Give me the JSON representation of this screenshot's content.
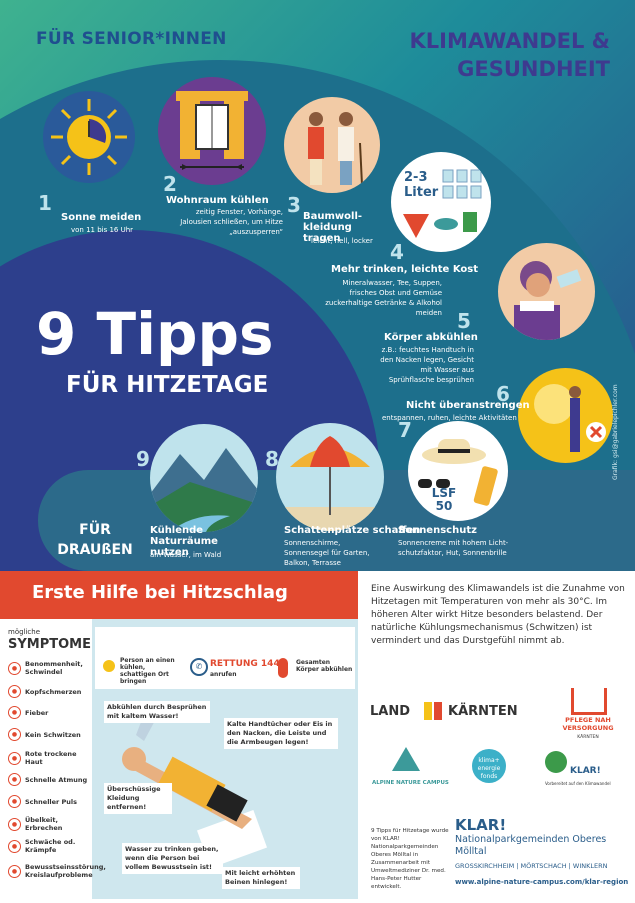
{
  "header": {
    "audience": "FÜR SENIOR*INNEN",
    "title_line1": "KLIMAWANDEL &",
    "title_line2": "GESUNDHEIT"
  },
  "hero": {
    "big": "9 Tipps",
    "sub": "FÜR HITZETAGE",
    "outdoor_line1": "FÜR",
    "outdoor_line2": "DRAUßEN"
  },
  "tips": [
    {
      "num": "1",
      "title": "Sonne meiden",
      "text": "von 11 bis 16 Uhr"
    },
    {
      "num": "2",
      "title": "Wohnraum kühlen",
      "text": "zeitig Fenster, Vorhänge, Jalousien schließen, um Hitze „auszusperren“"
    },
    {
      "num": "3",
      "title": "Baumwoll- kleidung tragen",
      "text": "leicht, hell, locker"
    },
    {
      "num": "4",
      "title": "Mehr trinken, leichte Kost",
      "text": "Mineralwasser, Tee, Suppen, frisches Obst und Gemüse zuckerhaltige Getränke & Alkohol meiden",
      "badge": "2-3 Liter"
    },
    {
      "num": "5",
      "title": "Körper abkühlen",
      "text": "z.B.: feuchtes Handtuch in den Nacken legen, Gesicht mit Wasser aus Sprühflasche besprühen"
    },
    {
      "num": "6",
      "title": "Nicht überanstrengen",
      "text": "entspannen, ruhen, leichte Aktivitäten"
    },
    {
      "num": "7",
      "title": "Sonnenschutz",
      "text": "Sonnencreme mit hohem Licht-schutzfaktor, Hut, Sonnenbrille",
      "badge": "LSF 50"
    },
    {
      "num": "8",
      "title": "Schattenplätze schaffen",
      "text": "Sonnenschirme, Sonnensegel für Garten, Balkon, Terrasse"
    },
    {
      "num": "9",
      "title": "Kühlende Naturräume nutzen",
      "text": "am Wasser, im Wald"
    }
  ],
  "credit": "Grafik: gsi@gabrielepichler.com",
  "first_aid": {
    "title": "Erste Hilfe bei Hitzschlag",
    "symptoms_pre": "mögliche",
    "symptoms_title": "SYMPTOME",
    "symptoms": [
      "Benommenheit, Schwindel",
      "Kopfschmerzen",
      "Fieber",
      "Kein Schwitzen",
      "Rote trockene Haut",
      "Schnelle Atmung",
      "Schneller Puls",
      "Übelkeit, Erbrechen",
      "Schwäche od. Krämpfe",
      "Bewusstseinsstörung, Kreislaufprobleme"
    ],
    "steps": [
      {
        "text": "Person an einen kühlen, schattigen Ort bringen"
      },
      {
        "label": "RETTUNG 144",
        "text": "anrufen"
      },
      {
        "text": "Gesamten Körper abkühlen"
      }
    ],
    "notes": [
      "Abkühlen durch Besprühen mit kaltem Wasser!",
      "Kalte Handtücher oder Eis in den Nacken, die Leiste und die Armbeugen legen!",
      "Überschüssige Kleidung entfernen!",
      "Wasser zu trinken geben, wenn die Person bei vollem Bewusstsein ist!",
      "Mit leicht erhöhten Beinen hinlegen!"
    ]
  },
  "intro_text": "Eine Auswirkung des Klimawandels ist die Zunahme von Hitzetagen mit Temperaturen von mehr als 30°C. Im höheren Alter wirkt Hitze besonders belastend. Der natürliche Kühlungsmechanismus (Schwitzen) ist vermindert und das Durstgefühl nimmt ab.",
  "logos": {
    "land_left": "LAND",
    "land_right": "KÄRNTEN",
    "pflege": "PFLEGE NAH VERSORGUNG",
    "pflege_sub": "KÄRNTEN",
    "alpine": "ALPINE NATURE CAMPUS",
    "klima": "klima+ energie fonds",
    "klar_logo": "KLAR!",
    "klar_logo_sub": "Vorbereitet auf den Klimawandel"
  },
  "footer": {
    "small": "9 Tipps für Hitzetage wurde von KLAR! Nationalparkgemeinden Oberes Mölltal in Zusammenarbeit mit Umweltmediziner Dr. med. Hans-Peter Hutter entwickelt.",
    "klar": "KLAR!",
    "region": "Nationalparkgemeinden Oberes Mölltal",
    "towns": "GROSSKIRCHHEIM | MÖRTSCHACH | WINKLERN",
    "url": "www.alpine-nature-campus.com/klar-region"
  },
  "colors": {
    "accent": "#e1492f",
    "navy": "#2d3f8c",
    "teal": "#1d6f8c",
    "klar": "#2a5d8a"
  }
}
